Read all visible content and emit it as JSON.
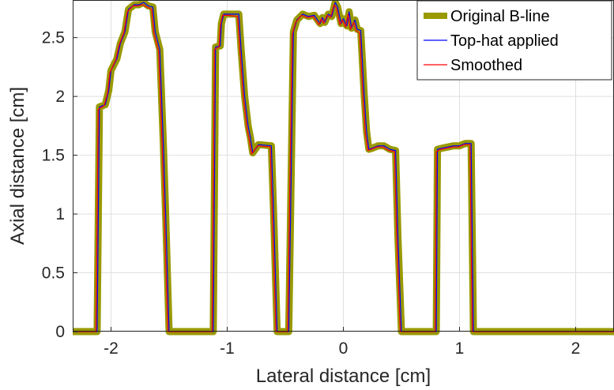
{
  "chart_data": {
    "type": "line",
    "xlabel": "Lateral distance [cm]",
    "ylabel": "Axial distance [cm]",
    "xlim": [
      -2.33,
      2.33
    ],
    "ylim": [
      0,
      2.82
    ],
    "x_ticks": [
      -2,
      -1,
      0,
      1,
      2
    ],
    "y_ticks": [
      0,
      0.5,
      1,
      1.5,
      2,
      2.5
    ],
    "x_tick_labels": [
      "-2",
      "-1",
      "0",
      "1",
      "2"
    ],
    "y_tick_labels": [
      "0",
      "0.5",
      "1",
      "1.5",
      "2",
      "2.5"
    ],
    "grid": true,
    "legend_position": "top-right",
    "series": [
      {
        "name": "Original B-line",
        "color": "#999900",
        "x": [
          -2.33,
          -2.12,
          -2.1,
          -2.05,
          -2.02,
          -2.0,
          -1.95,
          -1.92,
          -1.88,
          -1.85,
          -1.8,
          -1.76,
          -1.72,
          -1.68,
          -1.64,
          -1.62,
          -1.58,
          -1.55,
          -1.53,
          -1.5,
          -1.3,
          -1.12,
          -1.1,
          -1.06,
          -1.05,
          -1.03,
          -0.98,
          -0.9,
          -0.88,
          -0.85,
          -0.82,
          -0.8,
          -0.78,
          -0.73,
          -0.62,
          -0.6,
          -0.57,
          -0.47,
          -0.43,
          -0.4,
          -0.35,
          -0.3,
          -0.25,
          -0.2,
          -0.18,
          -0.16,
          -0.13,
          -0.1,
          -0.07,
          -0.05,
          -0.02,
          0.0,
          0.03,
          0.05,
          0.07,
          0.1,
          0.12,
          0.15,
          0.18,
          0.2,
          0.22,
          0.25,
          0.3,
          0.35,
          0.4,
          0.45,
          0.47,
          0.5,
          0.7,
          0.8,
          0.81,
          0.85,
          0.9,
          0.95,
          1.0,
          1.05,
          1.1,
          1.12,
          1.5,
          2.33
        ],
        "y": [
          0.0,
          0.0,
          1.91,
          1.93,
          2.05,
          2.22,
          2.32,
          2.45,
          2.55,
          2.74,
          2.78,
          2.78,
          2.8,
          2.77,
          2.76,
          2.55,
          2.4,
          1.6,
          1.0,
          0.0,
          0.0,
          0.0,
          2.42,
          2.43,
          2.62,
          2.7,
          2.7,
          2.7,
          2.4,
          2.0,
          1.75,
          1.65,
          1.52,
          1.59,
          1.58,
          1.0,
          0.0,
          0.0,
          2.55,
          2.65,
          2.7,
          2.68,
          2.69,
          2.62,
          2.67,
          2.63,
          2.7,
          2.68,
          2.8,
          2.76,
          2.62,
          2.66,
          2.6,
          2.72,
          2.58,
          2.65,
          2.57,
          2.56,
          2.0,
          1.7,
          1.55,
          1.56,
          1.58,
          1.58,
          1.55,
          1.54,
          0.8,
          0.0,
          0.0,
          0.0,
          1.55,
          1.56,
          1.57,
          1.58,
          1.58,
          1.6,
          1.6,
          0.0,
          0.0,
          0.0
        ]
      },
      {
        "name": "Top-hat applied",
        "color": "#0000ff",
        "x": [
          -2.33,
          -2.12,
          -2.1,
          -2.05,
          -2.02,
          -2.0,
          -1.95,
          -1.92,
          -1.88,
          -1.85,
          -1.8,
          -1.76,
          -1.72,
          -1.68,
          -1.64,
          -1.62,
          -1.58,
          -1.55,
          -1.53,
          -1.5,
          -1.3,
          -1.12,
          -1.1,
          -1.06,
          -1.05,
          -1.03,
          -0.98,
          -0.9,
          -0.88,
          -0.85,
          -0.82,
          -0.8,
          -0.78,
          -0.73,
          -0.62,
          -0.6,
          -0.57,
          -0.47,
          -0.43,
          -0.4,
          -0.35,
          -0.3,
          -0.25,
          -0.2,
          -0.18,
          -0.16,
          -0.13,
          -0.1,
          -0.07,
          -0.05,
          -0.02,
          0.0,
          0.03,
          0.05,
          0.07,
          0.1,
          0.12,
          0.15,
          0.18,
          0.2,
          0.22,
          0.25,
          0.3,
          0.35,
          0.4,
          0.45,
          0.47,
          0.5,
          0.7,
          0.8,
          0.81,
          0.85,
          0.9,
          0.95,
          1.0,
          1.05,
          1.1,
          1.12,
          1.5,
          2.33
        ],
        "y": [
          0.0,
          0.0,
          1.91,
          1.93,
          2.05,
          2.22,
          2.32,
          2.45,
          2.55,
          2.74,
          2.78,
          2.78,
          2.8,
          2.77,
          2.76,
          2.55,
          2.4,
          1.6,
          1.0,
          0.0,
          0.0,
          0.0,
          2.42,
          2.43,
          2.62,
          2.7,
          2.7,
          2.7,
          2.4,
          2.0,
          1.75,
          1.65,
          1.52,
          1.59,
          1.58,
          1.0,
          0.0,
          0.0,
          2.55,
          2.65,
          2.7,
          2.68,
          2.69,
          2.62,
          2.67,
          2.63,
          2.7,
          2.68,
          2.8,
          2.76,
          2.62,
          2.66,
          2.6,
          2.72,
          2.58,
          2.65,
          2.57,
          2.56,
          2.0,
          1.7,
          1.55,
          1.56,
          1.58,
          1.58,
          1.55,
          1.54,
          0.8,
          0.0,
          0.0,
          0.0,
          1.55,
          1.56,
          1.57,
          1.58,
          1.58,
          1.6,
          1.6,
          0.0,
          0.0,
          0.0
        ]
      },
      {
        "name": "Smoothed",
        "color": "#ff0000",
        "x": [
          -2.33,
          -2.13,
          -2.11,
          -2.06,
          -2.03,
          -2.01,
          -1.96,
          -1.93,
          -1.89,
          -1.86,
          -1.81,
          -1.77,
          -1.73,
          -1.69,
          -1.65,
          -1.63,
          -1.59,
          -1.56,
          -1.54,
          -1.51,
          -1.3,
          -1.13,
          -1.11,
          -1.07,
          -1.06,
          -1.04,
          -0.99,
          -0.91,
          -0.89,
          -0.86,
          -0.83,
          -0.81,
          -0.79,
          -0.74,
          -0.63,
          -0.61,
          -0.58,
          -0.48,
          -0.44,
          -0.41,
          -0.36,
          -0.31,
          -0.26,
          -0.21,
          -0.19,
          -0.17,
          -0.14,
          -0.11,
          -0.08,
          -0.06,
          -0.03,
          -0.01,
          0.02,
          0.04,
          0.06,
          0.09,
          0.11,
          0.14,
          0.17,
          0.19,
          0.21,
          0.24,
          0.29,
          0.34,
          0.39,
          0.44,
          0.46,
          0.49,
          0.7,
          0.79,
          0.8,
          0.84,
          0.89,
          0.94,
          0.99,
          1.04,
          1.09,
          1.11,
          1.5,
          2.33
        ],
        "y": [
          0.0,
          0.0,
          1.89,
          1.92,
          2.03,
          2.2,
          2.31,
          2.44,
          2.54,
          2.72,
          2.77,
          2.77,
          2.78,
          2.76,
          2.74,
          2.53,
          2.38,
          1.58,
          0.95,
          0.0,
          0.0,
          0.0,
          2.4,
          2.42,
          2.6,
          2.69,
          2.69,
          2.68,
          2.38,
          1.98,
          1.73,
          1.63,
          1.51,
          1.58,
          1.57,
          0.95,
          0.0,
          0.0,
          2.53,
          2.63,
          2.69,
          2.67,
          2.68,
          2.61,
          2.66,
          2.62,
          2.69,
          2.67,
          2.78,
          2.75,
          2.61,
          2.65,
          2.59,
          2.7,
          2.57,
          2.63,
          2.56,
          2.54,
          1.98,
          1.68,
          1.54,
          1.55,
          1.57,
          1.57,
          1.54,
          1.53,
          0.78,
          0.0,
          0.0,
          0.0,
          1.53,
          1.55,
          1.56,
          1.57,
          1.57,
          1.59,
          1.59,
          0.0,
          0.0,
          0.0
        ]
      }
    ]
  }
}
